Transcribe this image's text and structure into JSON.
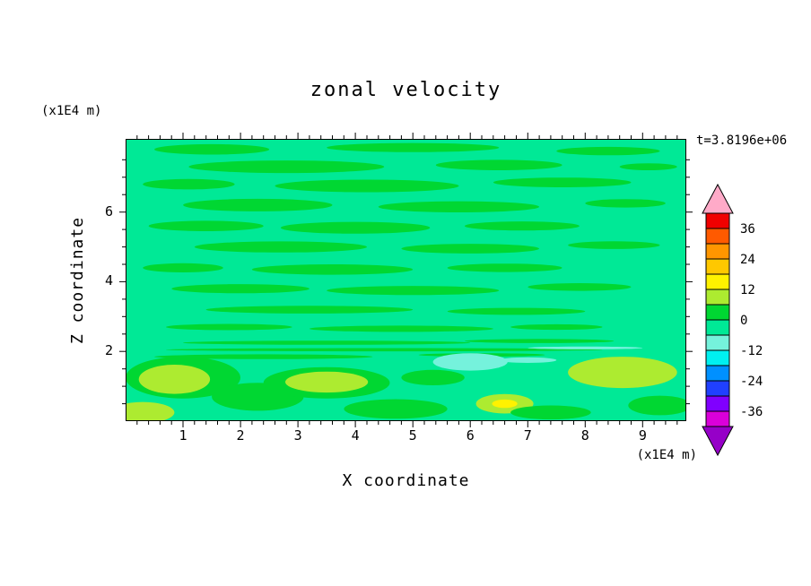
{
  "chart_data": {
    "type": "contour",
    "title": "zonal velocity",
    "timestamp": "t=3.8196e+06",
    "xlabel": "X coordinate",
    "ylabel": "Z coordinate",
    "x_units": "(x1E4 m)",
    "y_units": "(x1E4 m)",
    "xlim": [
      0,
      9.76
    ],
    "zlim": [
      0,
      8.1
    ],
    "x_ticks": [
      1,
      2,
      3,
      4,
      5,
      6,
      7,
      8,
      9
    ],
    "x_minor_step": 0.2,
    "y_ticks": [
      2,
      4,
      6
    ],
    "y_minor_step": 0.5,
    "background_value": -3,
    "frame_color": "#000000",
    "colorbar": {
      "min": -42,
      "step": 6,
      "tick_values": [
        36,
        24,
        12,
        0,
        -12,
        -24,
        -36
      ],
      "colors": [
        "#DA00DA",
        "#8000FF",
        "#2040FF",
        "#0090FF",
        "#00F0F0",
        "#75F2DC",
        "#00E996",
        "#00D732",
        "#ADEB30",
        "#FFF200",
        "#FFC800",
        "#FF9600",
        "#FF5A00",
        "#F00000"
      ],
      "under_color": "#9600C8",
      "over_color": "#FFAAC8"
    },
    "features": [
      {
        "x": 1.5,
        "z": 7.8,
        "rx": 1.0,
        "rz": 0.15,
        "v": 3
      },
      {
        "x": 5.0,
        "z": 7.85,
        "rx": 1.5,
        "rz": 0.13,
        "v": 3
      },
      {
        "x": 8.4,
        "z": 7.75,
        "rx": 0.9,
        "rz": 0.12,
        "v": 3
      },
      {
        "x": 2.8,
        "z": 7.3,
        "rx": 1.7,
        "rz": 0.18,
        "v": 3
      },
      {
        "x": 6.5,
        "z": 7.35,
        "rx": 1.1,
        "rz": 0.15,
        "v": 3
      },
      {
        "x": 9.1,
        "z": 7.3,
        "rx": 0.5,
        "rz": 0.1,
        "v": 3
      },
      {
        "x": 1.1,
        "z": 6.8,
        "rx": 0.8,
        "rz": 0.15,
        "v": 3
      },
      {
        "x": 4.2,
        "z": 6.75,
        "rx": 1.6,
        "rz": 0.18,
        "v": 3
      },
      {
        "x": 7.6,
        "z": 6.85,
        "rx": 1.2,
        "rz": 0.14,
        "v": 3
      },
      {
        "x": 2.3,
        "z": 6.2,
        "rx": 1.3,
        "rz": 0.18,
        "v": 3
      },
      {
        "x": 5.8,
        "z": 6.15,
        "rx": 1.4,
        "rz": 0.16,
        "v": 3
      },
      {
        "x": 8.7,
        "z": 6.25,
        "rx": 0.7,
        "rz": 0.12,
        "v": 3
      },
      {
        "x": 1.4,
        "z": 5.6,
        "rx": 1.0,
        "rz": 0.15,
        "v": 3
      },
      {
        "x": 4.0,
        "z": 5.55,
        "rx": 1.3,
        "rz": 0.17,
        "v": 3
      },
      {
        "x": 6.9,
        "z": 5.6,
        "rx": 1.0,
        "rz": 0.13,
        "v": 3
      },
      {
        "x": 2.7,
        "z": 5.0,
        "rx": 1.5,
        "rz": 0.16,
        "v": 3
      },
      {
        "x": 6.0,
        "z": 4.95,
        "rx": 1.2,
        "rz": 0.14,
        "v": 3
      },
      {
        "x": 8.5,
        "z": 5.05,
        "rx": 0.8,
        "rz": 0.11,
        "v": 3
      },
      {
        "x": 1.0,
        "z": 4.4,
        "rx": 0.7,
        "rz": 0.13,
        "v": 3
      },
      {
        "x": 3.6,
        "z": 4.35,
        "rx": 1.4,
        "rz": 0.15,
        "v": 3
      },
      {
        "x": 6.6,
        "z": 4.4,
        "rx": 1.0,
        "rz": 0.12,
        "v": 3
      },
      {
        "x": 2.0,
        "z": 3.8,
        "rx": 1.2,
        "rz": 0.13,
        "v": 3
      },
      {
        "x": 5.0,
        "z": 3.75,
        "rx": 1.5,
        "rz": 0.13,
        "v": 3
      },
      {
        "x": 7.9,
        "z": 3.85,
        "rx": 0.9,
        "rz": 0.11,
        "v": 3
      },
      {
        "x": 3.2,
        "z": 3.2,
        "rx": 1.8,
        "rz": 0.11,
        "v": 3
      },
      {
        "x": 6.8,
        "z": 3.15,
        "rx": 1.2,
        "rz": 0.1,
        "v": 3
      },
      {
        "x": 1.8,
        "z": 2.7,
        "rx": 1.1,
        "rz": 0.09,
        "v": 3
      },
      {
        "x": 4.8,
        "z": 2.65,
        "rx": 1.6,
        "rz": 0.09,
        "v": 3
      },
      {
        "x": 7.5,
        "z": 2.7,
        "rx": 0.8,
        "rz": 0.08,
        "v": 3
      },
      {
        "x": 3.5,
        "z": 2.25,
        "rx": 2.5,
        "rz": 0.06,
        "v": 3
      },
      {
        "x": 7.2,
        "z": 2.3,
        "rx": 1.3,
        "rz": 0.06,
        "v": 3
      },
      {
        "x": 4.5,
        "z": 2.05,
        "rx": 3.8,
        "rz": 0.045,
        "v": 3
      },
      {
        "x": 1.0,
        "z": 1.25,
        "rx": 1.0,
        "rz": 0.6,
        "v": 3
      },
      {
        "x": 0.85,
        "z": 1.2,
        "rx": 0.62,
        "rz": 0.42,
        "v": 9
      },
      {
        "x": 0.3,
        "z": 0.25,
        "rx": 0.55,
        "rz": 0.3,
        "v": 9
      },
      {
        "x": 2.3,
        "z": 0.7,
        "rx": 0.8,
        "rz": 0.4,
        "v": 3
      },
      {
        "x": 3.5,
        "z": 1.1,
        "rx": 1.1,
        "rz": 0.45,
        "v": 3
      },
      {
        "x": 3.5,
        "z": 1.12,
        "rx": 0.72,
        "rz": 0.3,
        "v": 9
      },
      {
        "x": 4.7,
        "z": 0.35,
        "rx": 0.9,
        "rz": 0.28,
        "v": 3
      },
      {
        "x": 5.35,
        "z": 1.25,
        "rx": 0.55,
        "rz": 0.22,
        "v": 3
      },
      {
        "x": 2.4,
        "z": 1.85,
        "rx": 1.9,
        "rz": 0.07,
        "v": 3
      },
      {
        "x": 6.2,
        "z": 1.9,
        "rx": 1.1,
        "rz": 0.05,
        "v": 3
      },
      {
        "x": 6.0,
        "z": 1.7,
        "rx": 0.65,
        "rz": 0.25,
        "v": -9
      },
      {
        "x": 7.0,
        "z": 1.75,
        "rx": 0.5,
        "rz": 0.08,
        "v": -9
      },
      {
        "x": 8.0,
        "z": 2.1,
        "rx": 1.0,
        "rz": 0.04,
        "v": -9
      },
      {
        "x": 6.6,
        "z": 0.5,
        "rx": 0.5,
        "rz": 0.28,
        "v": 9
      },
      {
        "x": 6.6,
        "z": 0.5,
        "rx": 0.22,
        "rz": 0.12,
        "v": 15
      },
      {
        "x": 8.65,
        "z": 1.4,
        "rx": 0.95,
        "rz": 0.45,
        "v": 9
      },
      {
        "x": 7.4,
        "z": 0.25,
        "rx": 0.7,
        "rz": 0.2,
        "v": 3
      },
      {
        "x": 9.3,
        "z": 0.45,
        "rx": 0.55,
        "rz": 0.28,
        "v": 3
      }
    ]
  }
}
